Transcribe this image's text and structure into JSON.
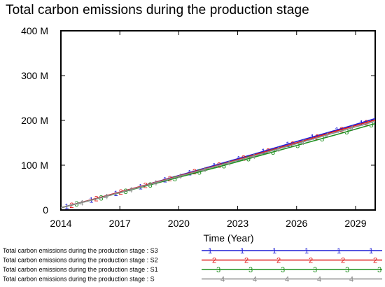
{
  "chart_data": {
    "type": "line",
    "title": "Total carbon emissions during the production stage",
    "xlabel": "Time (Year)",
    "ylabel": "",
    "xlim": [
      2014,
      2030
    ],
    "ylim": [
      0,
      400000000
    ],
    "x_ticks": [
      2014,
      2017,
      2020,
      2023,
      2026,
      2029
    ],
    "x_tick_labels": [
      "2014",
      "2017",
      "2020",
      "2023",
      "2026",
      "2029"
    ],
    "y_ticks": [
      0,
      100000000,
      200000000,
      300000000,
      400000000
    ],
    "y_tick_labels": [
      "0",
      "100 M",
      "200 M",
      "300 M",
      "400 M"
    ],
    "grid": false,
    "legend_position": "bottom",
    "series": [
      {
        "name": "Total carbon emissions during the production stage : S3",
        "marker": "1",
        "color": "#1f1fd6",
        "x": [
          2014,
          2016,
          2018,
          2020,
          2022,
          2024,
          2026,
          2028,
          2030
        ],
        "values": [
          5000000,
          28000000,
          52000000,
          77000000,
          102000000,
          127000000,
          153000000,
          178000000,
          204000000
        ]
      },
      {
        "name": "Total carbon emissions during the production stage : S2",
        "marker": "2",
        "color": "#e01b1b",
        "x": [
          2014,
          2016,
          2018,
          2020,
          2022,
          2024,
          2026,
          2028,
          2030
        ],
        "values": [
          5000000,
          28000000,
          52000000,
          76000000,
          100000000,
          125000000,
          150000000,
          176000000,
          201000000
        ]
      },
      {
        "name": "Total carbon emissions during the production stage : S1",
        "marker": "3",
        "color": "#1f8f1f",
        "x": [
          2014,
          2016,
          2018,
          2020,
          2022,
          2024,
          2026,
          2028,
          2030
        ],
        "values": [
          5000000,
          27000000,
          50000000,
          73000000,
          96000000,
          120000000,
          144000000,
          168000000,
          193000000
        ]
      },
      {
        "name": "Total carbon emissions during the production stage : S",
        "marker": "4",
        "color": "#8c8c8c",
        "x": [
          2014,
          2016,
          2018,
          2020,
          2022,
          2024,
          2026,
          2028,
          2030
        ],
        "values": [
          5000000,
          27000000,
          51000000,
          75000000,
          99000000,
          123000000,
          148000000,
          173000000,
          198000000
        ]
      }
    ]
  }
}
